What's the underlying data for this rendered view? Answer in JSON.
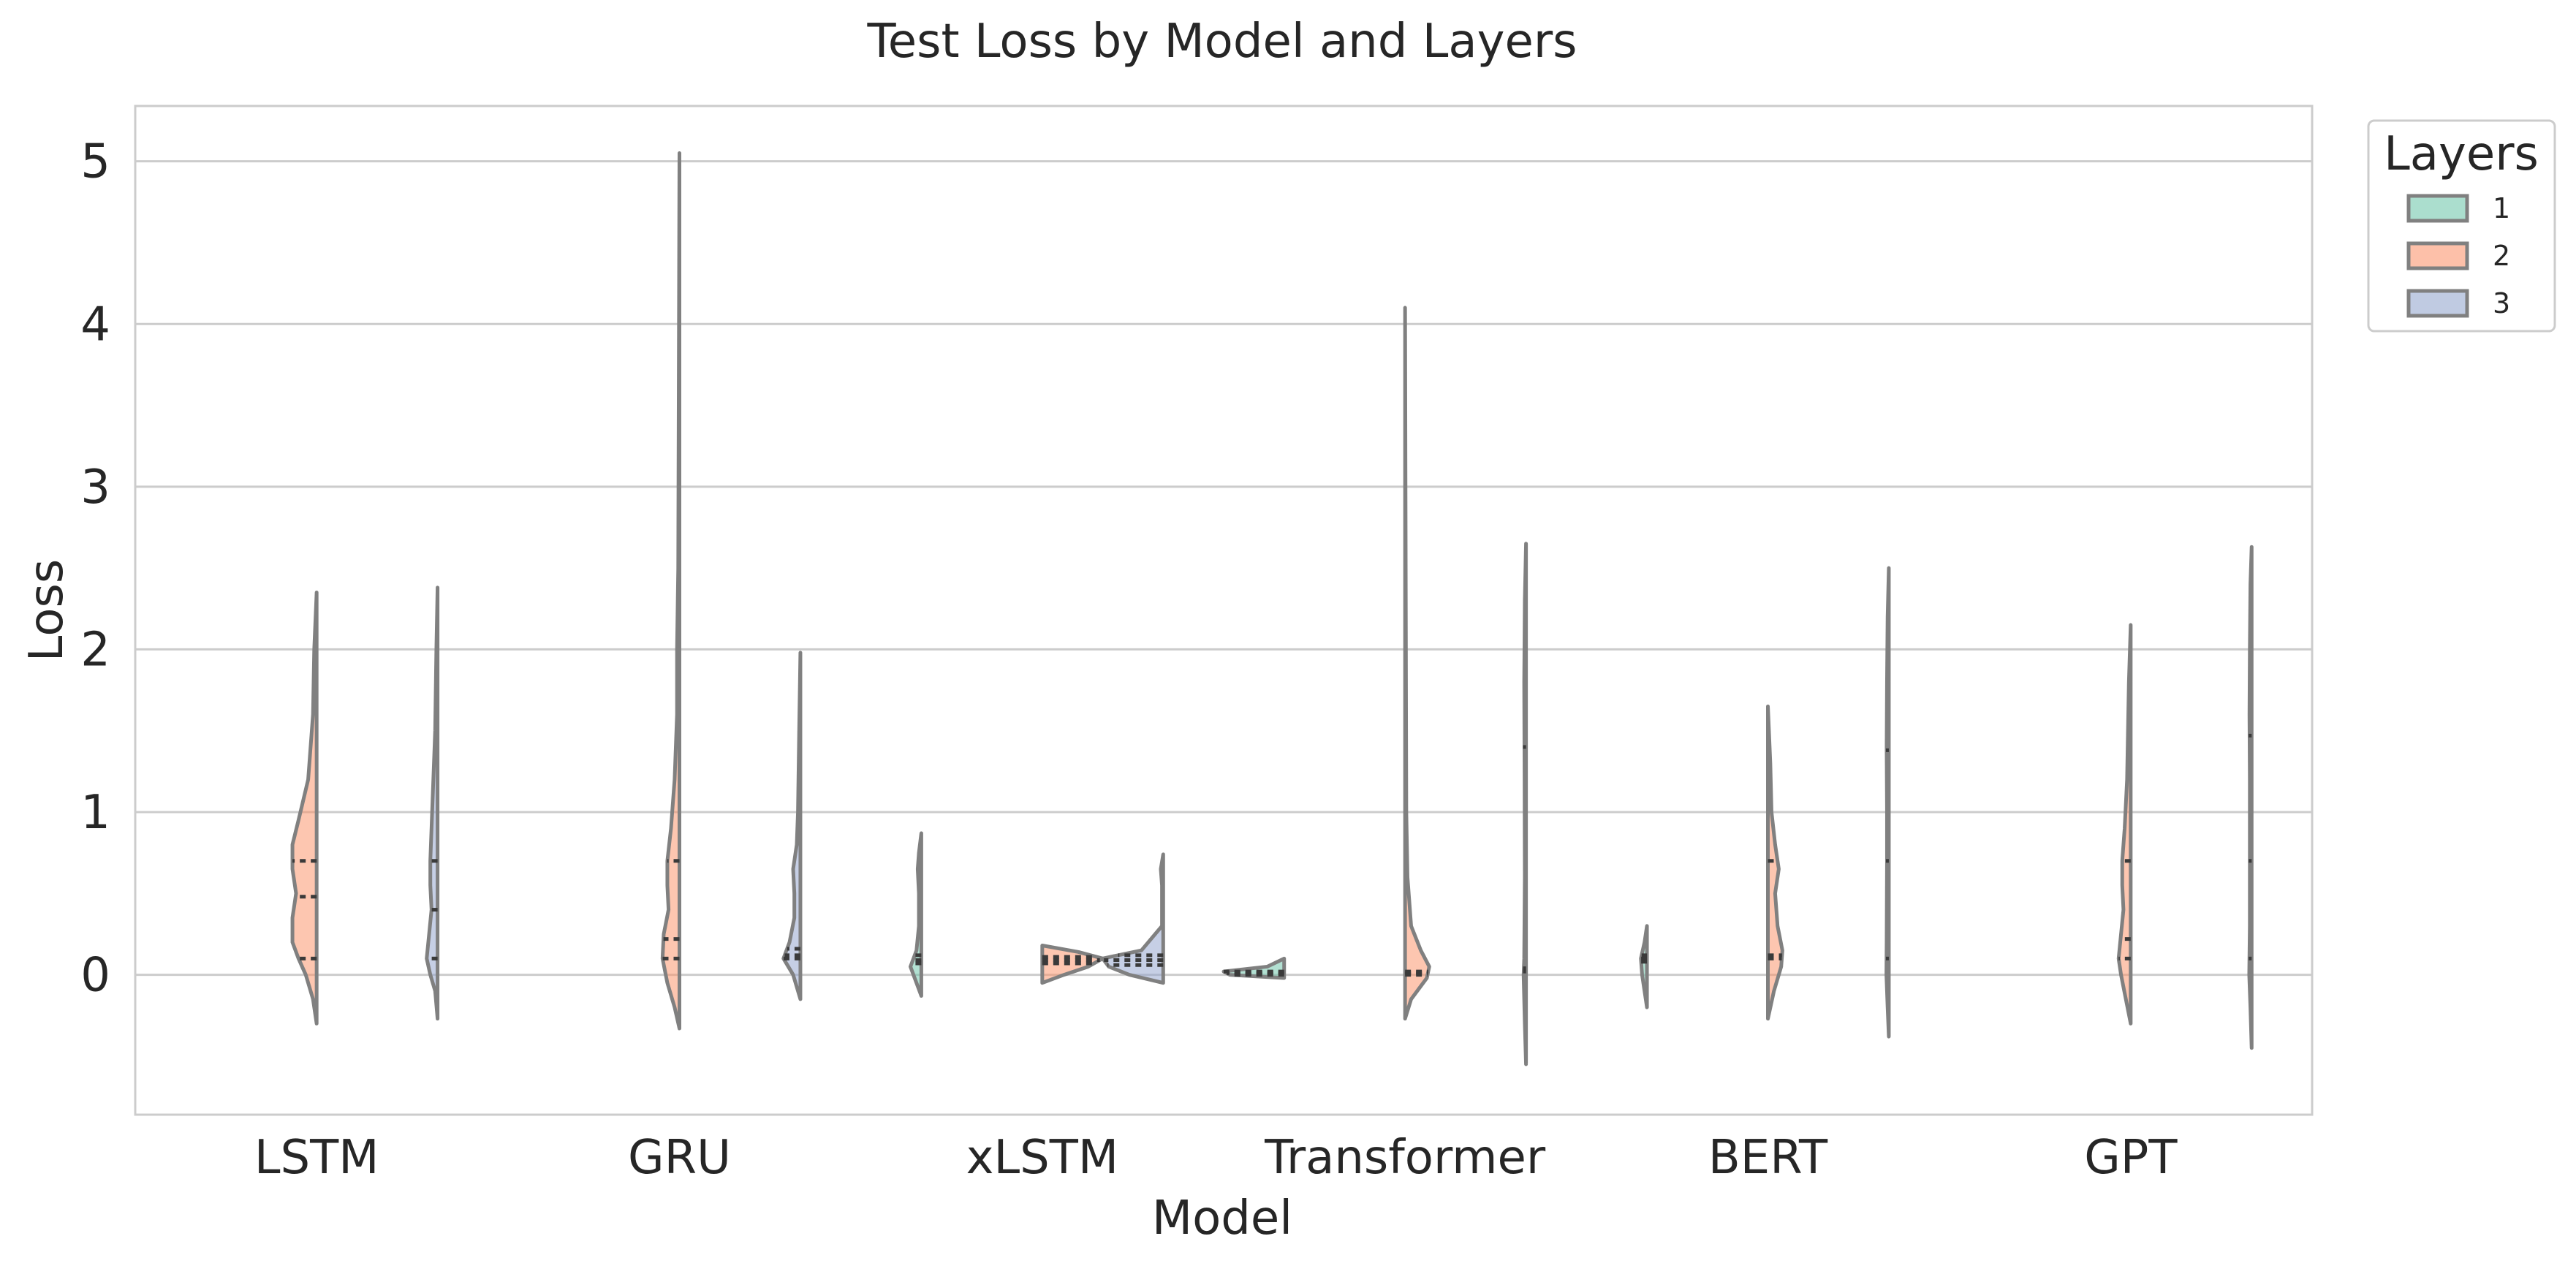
{
  "chart_data": {
    "type": "violin",
    "title": "Test Loss by Model and Layers",
    "xlabel": "Model",
    "ylabel": "Loss",
    "ylim": [
      -0.86,
      5.34
    ],
    "yticks": [
      0,
      1,
      2,
      3,
      4,
      5
    ],
    "grid": "y",
    "categories": [
      "LSTM",
      "GRU",
      "xLSTM",
      "Transformer",
      "BERT",
      "GPT"
    ],
    "legend": {
      "title": "Layers",
      "placement": "outside-top-right",
      "entries": [
        {
          "label": "1",
          "color": "#66c2a5"
        },
        {
          "label": "2",
          "color": "#fc8d62"
        },
        {
          "label": "3",
          "color": "#8da0cb"
        }
      ]
    },
    "violins": [
      {
        "category": "LSTM",
        "layers": "2",
        "side": "left",
        "min": -0.3,
        "max": 2.35,
        "profile": [
          [
            -0.3,
            0
          ],
          [
            -0.15,
            0.03
          ],
          [
            0,
            0.09
          ],
          [
            0.1,
            0.15
          ],
          [
            0.2,
            0.2
          ],
          [
            0.35,
            0.2
          ],
          [
            0.5,
            0.17
          ],
          [
            0.65,
            0.2
          ],
          [
            0.8,
            0.2
          ],
          [
            0.95,
            0.15
          ],
          [
            1.2,
            0.07
          ],
          [
            1.6,
            0.03
          ],
          [
            2.0,
            0.02
          ],
          [
            2.35,
            0
          ]
        ],
        "quartiles": [
          0.1,
          0.48,
          0.7
        ]
      },
      {
        "category": "LSTM",
        "layers": "3",
        "side": "left",
        "min": -0.27,
        "max": 2.38,
        "profile": [
          [
            -0.27,
            0
          ],
          [
            -0.1,
            0.02
          ],
          [
            0,
            0.06
          ],
          [
            0.1,
            0.09
          ],
          [
            0.25,
            0.07
          ],
          [
            0.4,
            0.05
          ],
          [
            0.55,
            0.06
          ],
          [
            0.7,
            0.06
          ],
          [
            0.9,
            0.05
          ],
          [
            1.1,
            0.04
          ],
          [
            1.5,
            0.02
          ],
          [
            2.0,
            0.01
          ],
          [
            2.38,
            0
          ]
        ],
        "quartiles": [
          0.1,
          0.4,
          0.7
        ]
      },
      {
        "category": "GRU",
        "layers": "2",
        "side": "left",
        "min": -0.33,
        "max": 5.05,
        "profile": [
          [
            -0.33,
            0
          ],
          [
            -0.2,
            0.04
          ],
          [
            -0.05,
            0.1
          ],
          [
            0.1,
            0.14
          ],
          [
            0.25,
            0.13
          ],
          [
            0.4,
            0.09
          ],
          [
            0.55,
            0.1
          ],
          [
            0.7,
            0.1
          ],
          [
            0.9,
            0.07
          ],
          [
            1.2,
            0.04
          ],
          [
            1.6,
            0.02
          ],
          [
            2.0,
            0.02
          ],
          [
            2.5,
            0.01
          ],
          [
            5.05,
            0
          ]
        ],
        "quartiles": [
          0.1,
          0.22,
          0.7
        ]
      },
      {
        "category": "GRU",
        "layers": "3",
        "side": "left",
        "min": -0.15,
        "max": 1.98,
        "profile": [
          [
            -0.15,
            0
          ],
          [
            0,
            0.06
          ],
          [
            0.1,
            0.14
          ],
          [
            0.2,
            0.09
          ],
          [
            0.35,
            0.05
          ],
          [
            0.5,
            0.05
          ],
          [
            0.65,
            0.06
          ],
          [
            0.8,
            0.03
          ],
          [
            1.0,
            0.02
          ],
          [
            1.5,
            0.01
          ],
          [
            1.98,
            0
          ]
        ],
        "quartiles": [
          0.1,
          0.12,
          0.16
        ]
      },
      {
        "category": "xLSTM",
        "layers": "1",
        "side": "left",
        "min": -0.13,
        "max": 0.87,
        "profile": [
          [
            -0.13,
            0
          ],
          [
            -0.05,
            0.04
          ],
          [
            0.05,
            0.09
          ],
          [
            0.15,
            0.04
          ],
          [
            0.3,
            0.02
          ],
          [
            0.5,
            0.02
          ],
          [
            0.65,
            0.03
          ],
          [
            0.75,
            0.02
          ],
          [
            0.87,
            0
          ]
        ],
        "quartiles": [
          0.07,
          0.09,
          0.12
        ]
      },
      {
        "category": "xLSTM",
        "layers": "2",
        "side": "right",
        "min": -0.05,
        "max": 0.18,
        "profile": [
          [
            -0.05,
            0
          ],
          [
            0,
            0.18
          ],
          [
            0.05,
            0.38
          ],
          [
            0.1,
            0.5
          ],
          [
            0.14,
            0.3
          ],
          [
            0.18,
            0
          ]
        ],
        "quartiles": [
          0.07,
          0.09,
          0.11
        ]
      },
      {
        "category": "xLSTM",
        "layers": "3",
        "side": "left",
        "min": -0.05,
        "max": 0.74,
        "profile": [
          [
            -0.05,
            0
          ],
          [
            0,
            0.28
          ],
          [
            0.05,
            0.45
          ],
          [
            0.1,
            0.5
          ],
          [
            0.15,
            0.18
          ],
          [
            0.3,
            0.01
          ],
          [
            0.55,
            0.01
          ],
          [
            0.65,
            0.02
          ],
          [
            0.74,
            0
          ]
        ],
        "quartiles": [
          0.06,
          0.09,
          0.12
        ]
      },
      {
        "category": "Transformer",
        "layers": "1",
        "side": "left",
        "min": -0.02,
        "max": 0.1,
        "profile": [
          [
            -0.02,
            0
          ],
          [
            0,
            0.45
          ],
          [
            0.02,
            0.5
          ],
          [
            0.05,
            0.14
          ],
          [
            0.1,
            0
          ]
        ],
        "quartiles": [
          0.0,
          0.01,
          0.02
        ]
      },
      {
        "category": "Transformer",
        "layers": "2",
        "side": "right",
        "min": -0.27,
        "max": 4.1,
        "profile": [
          [
            -0.27,
            0
          ],
          [
            -0.15,
            0.05
          ],
          [
            -0.02,
            0.18
          ],
          [
            0.05,
            0.2
          ],
          [
            0.15,
            0.13
          ],
          [
            0.3,
            0.05
          ],
          [
            0.6,
            0.02
          ],
          [
            1.0,
            0.01
          ],
          [
            4.1,
            0
          ]
        ],
        "quartiles": [
          0.0,
          0.01,
          0.02
        ]
      },
      {
        "category": "Transformer",
        "layers": "3",
        "side": "left",
        "min": -0.55,
        "max": 2.65,
        "profile": [
          [
            -0.55,
            0
          ],
          [
            -0.3,
            0.01
          ],
          [
            0,
            0.02
          ],
          [
            0.1,
            0.015
          ],
          [
            0.6,
            0.01
          ],
          [
            1.2,
            0.012
          ],
          [
            1.8,
            0.015
          ],
          [
            2.3,
            0.01
          ],
          [
            2.65,
            0
          ]
        ],
        "quartiles": [
          0.02,
          0.04,
          1.4
        ]
      },
      {
        "category": "BERT",
        "layers": "1",
        "side": "left",
        "min": -0.2,
        "max": 0.3,
        "profile": [
          [
            -0.2,
            0
          ],
          [
            -0.1,
            0.02
          ],
          [
            0,
            0.04
          ],
          [
            0.1,
            0.05
          ],
          [
            0.2,
            0.02
          ],
          [
            0.3,
            0
          ]
        ],
        "quartiles": [
          0.08,
          0.1,
          0.12
        ]
      },
      {
        "category": "BERT",
        "layers": "2",
        "side": "right",
        "min": -0.27,
        "max": 1.65,
        "profile": [
          [
            -0.27,
            0
          ],
          [
            -0.1,
            0.05
          ],
          [
            0.05,
            0.11
          ],
          [
            0.15,
            0.12
          ],
          [
            0.3,
            0.08
          ],
          [
            0.5,
            0.06
          ],
          [
            0.65,
            0.09
          ],
          [
            0.8,
            0.06
          ],
          [
            1.0,
            0.03
          ],
          [
            1.3,
            0.02
          ],
          [
            1.65,
            0
          ]
        ],
        "quartiles": [
          0.1,
          0.12,
          0.7
        ]
      },
      {
        "category": "BERT",
        "layers": "3",
        "side": "left",
        "min": -0.38,
        "max": 2.5,
        "profile": [
          [
            -0.38,
            0
          ],
          [
            -0.2,
            0.01
          ],
          [
            0,
            0.02
          ],
          [
            0.2,
            0.018
          ],
          [
            0.7,
            0.015
          ],
          [
            1.0,
            0.015
          ],
          [
            1.4,
            0.018
          ],
          [
            1.8,
            0.015
          ],
          [
            2.2,
            0.01
          ],
          [
            2.5,
            0
          ]
        ],
        "quartiles": [
          0.1,
          0.7,
          1.38
        ]
      },
      {
        "category": "GPT",
        "layers": "2",
        "side": "left",
        "min": -0.3,
        "max": 2.15,
        "profile": [
          [
            -0.3,
            0
          ],
          [
            -0.15,
            0.04
          ],
          [
            0,
            0.08
          ],
          [
            0.1,
            0.1
          ],
          [
            0.25,
            0.08
          ],
          [
            0.4,
            0.06
          ],
          [
            0.55,
            0.07
          ],
          [
            0.7,
            0.07
          ],
          [
            0.9,
            0.05
          ],
          [
            1.2,
            0.03
          ],
          [
            1.6,
            0.02
          ],
          [
            1.8,
            0.015
          ],
          [
            2.15,
            0
          ]
        ],
        "quartiles": [
          0.1,
          0.22,
          0.7
        ]
      },
      {
        "category": "GPT",
        "layers": "3",
        "side": "left",
        "min": -0.45,
        "max": 2.63,
        "profile": [
          [
            -0.45,
            0
          ],
          [
            -0.2,
            0.01
          ],
          [
            0,
            0.02
          ],
          [
            0.3,
            0.015
          ],
          [
            0.8,
            0.015
          ],
          [
            1.2,
            0.015
          ],
          [
            1.6,
            0.018
          ],
          [
            2.0,
            0.015
          ],
          [
            2.4,
            0.01
          ],
          [
            2.63,
            0
          ]
        ],
        "quartiles": [
          0.1,
          0.7,
          1.47
        ]
      }
    ]
  }
}
